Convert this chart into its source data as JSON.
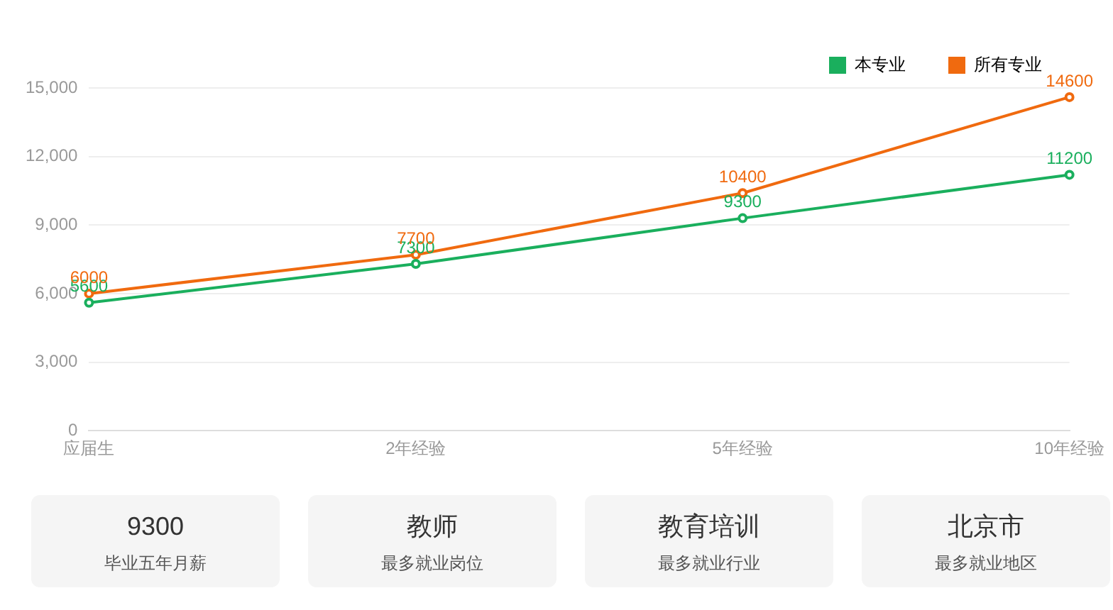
{
  "chart_data": [
    {
      "type": "line",
      "categories": [
        "应届生",
        "2年经验",
        "5年经验",
        "10年经验"
      ],
      "series": [
        {
          "name": "本专业",
          "color": "#1aaf5d",
          "values": [
            5600,
            7300,
            9300,
            11200
          ]
        },
        {
          "name": "所有专业",
          "color": "#f06a0f",
          "values": [
            6000,
            7700,
            10400,
            14600
          ]
        }
      ],
      "ylim": [
        0,
        15000
      ],
      "yticks": [
        0,
        {
          "value": 3000,
          "label": "3,000"
        },
        {
          "value": 6000,
          "label": "6,000"
        },
        {
          "value": 9000,
          "label": "9,000"
        },
        {
          "value": 12000,
          "label": "12,000"
        },
        {
          "value": 15000,
          "label": "15,000"
        }
      ],
      "grid": "y",
      "legend": "top right",
      "marker": "circle",
      "data_labels": true
    },
    {
      "type": "other",
      "annotations": [
        "9300",
        "毕业五年月薪",
        "教师",
        "最多就业岗位",
        "教育培训",
        "最多就业行业",
        "北京市",
        "最多就业地区"
      ]
    }
  ]
}
